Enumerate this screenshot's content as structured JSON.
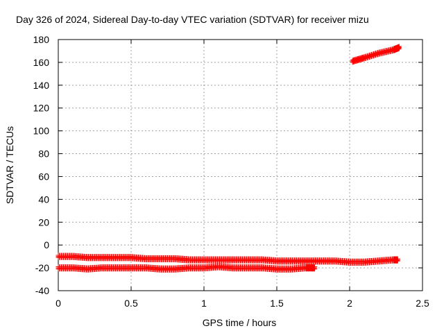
{
  "chart_data": {
    "type": "scatter",
    "title": "Day 326 of 2024, Sidereal Day-to-day VTEC variation (SDTVAR) for receiver mizu",
    "xlabel": "GPS time / hours",
    "ylabel": "SDTVAR / TECUs",
    "xlim": [
      0,
      2.5
    ],
    "ylim": [
      -40,
      180
    ],
    "xticks": [
      "0",
      "0.5",
      "1",
      "1.5",
      "2",
      "2.5"
    ],
    "yticks": [
      "-40",
      "-20",
      "0",
      "20",
      "40",
      "60",
      "80",
      "100",
      "120",
      "140",
      "160",
      "180"
    ],
    "grid": true,
    "marker": "+",
    "color": "#ff0000",
    "series": [
      {
        "x": [
          0,
          0.1,
          0.2,
          0.3,
          0.4,
          0.5,
          0.6,
          0.7,
          0.8,
          0.9,
          1.0,
          1.1,
          1.2,
          1.3,
          1.4,
          1.5,
          1.6,
          1.7,
          1.8,
          1.9,
          2.0,
          2.1,
          2.2,
          2.3,
          2.33
        ],
        "values": [
          -10,
          -10,
          -11,
          -11,
          -11,
          -11,
          -12,
          -12,
          -12,
          -13,
          -13,
          -13,
          -13,
          -13,
          -13,
          -14,
          -14,
          -14,
          -14,
          -14,
          -15,
          -15,
          -14,
          -13,
          -13
        ]
      },
      {
        "x": [
          0,
          0.1,
          0.2,
          0.3,
          0.4,
          0.5,
          0.6,
          0.7,
          0.8,
          0.9,
          1.0,
          1.1,
          1.2,
          1.3,
          1.4,
          1.5,
          1.6,
          1.7,
          1.76
        ],
        "values": [
          -20,
          -20,
          -21,
          -20,
          -20,
          -20,
          -20,
          -21,
          -21,
          -20,
          -20,
          -19,
          -20,
          -20,
          -20,
          -21,
          -21,
          -20,
          -20
        ]
      },
      {
        "x": [
          2.02,
          2.1,
          2.2,
          2.3,
          2.34
        ],
        "values": [
          161,
          164,
          168,
          171,
          173
        ]
      }
    ]
  }
}
